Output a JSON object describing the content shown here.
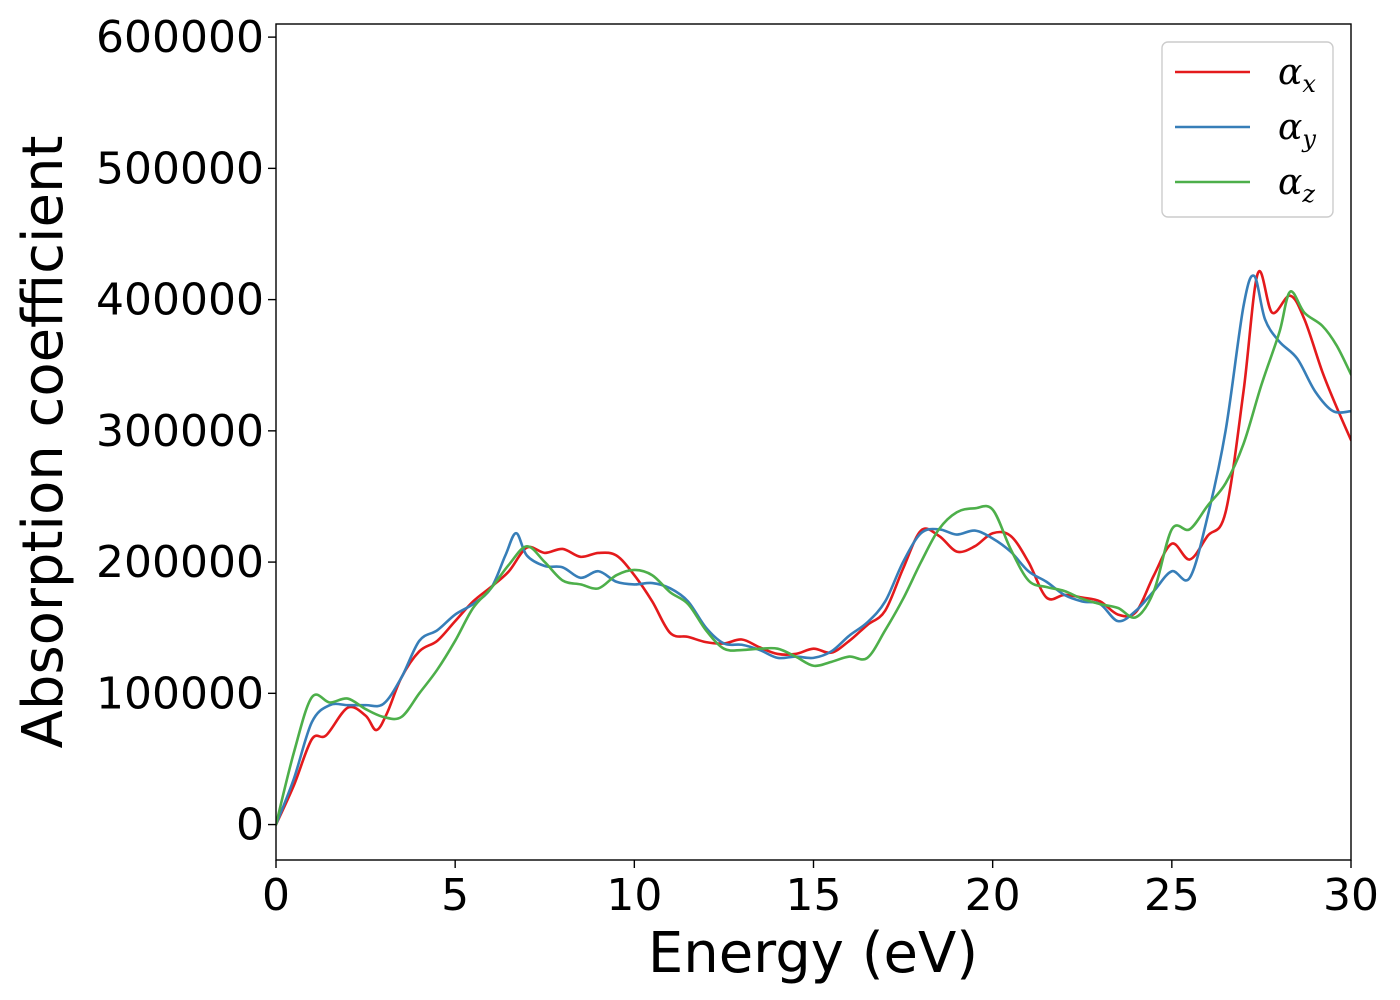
{
  "chart_data": {
    "type": "line",
    "xlabel": "Energy (eV)",
    "ylabel": "Absorption coefficient",
    "xlim": [
      0,
      30
    ],
    "ylim": [
      -27000,
      610000
    ],
    "xticks": [
      0,
      5,
      10,
      15,
      20,
      25,
      30
    ],
    "yticks": [
      0,
      100000,
      200000,
      300000,
      400000,
      500000,
      600000
    ],
    "grid": false,
    "legend_position": "top-right",
    "series": [
      {
        "name": "α",
        "subscript": "x",
        "color": "#e41a1c",
        "x": [
          0,
          0.5,
          1,
          1.4,
          2,
          2.5,
          2.8,
          3.1,
          3.5,
          4,
          4.5,
          5,
          5.5,
          6,
          6.5,
          7,
          7.5,
          8,
          8.5,
          9,
          9.5,
          10,
          10.5,
          11,
          11.5,
          12,
          12.5,
          13,
          13.5,
          14,
          14.5,
          15,
          15.5,
          16,
          16.5,
          17,
          17.5,
          18,
          18.5,
          19,
          19.5,
          20,
          20.5,
          21,
          21.5,
          22,
          22.5,
          23,
          23.5,
          24,
          24.5,
          25,
          25.5,
          26,
          26.5,
          27,
          27.4,
          27.8,
          28.3,
          28.7,
          29.2,
          29.6,
          30
        ],
        "y": [
          0,
          30000,
          65000,
          68000,
          89000,
          83000,
          72000,
          85000,
          112000,
          132000,
          140000,
          155000,
          170000,
          181000,
          193000,
          211000,
          207000,
          210000,
          204000,
          207000,
          205000,
          190000,
          170000,
          146000,
          143000,
          139000,
          138000,
          141000,
          135000,
          130000,
          130000,
          134000,
          131000,
          140000,
          152000,
          163000,
          195000,
          224000,
          220000,
          208000,
          212000,
          222000,
          220000,
          200000,
          173000,
          175000,
          173000,
          170000,
          160000,
          162000,
          190000,
          214000,
          202000,
          220000,
          238000,
          330000,
          420000,
          390000,
          403000,
          385000,
          345000,
          318000,
          293000
        ]
      },
      {
        "name": "α",
        "subscript": "y",
        "color": "#377eb8",
        "x": [
          0,
          0.5,
          1,
          1.5,
          2,
          2.5,
          3,
          3.5,
          4,
          4.5,
          5,
          5.5,
          6,
          6.4,
          6.7,
          7,
          7.5,
          8,
          8.5,
          9,
          9.5,
          10,
          10.5,
          11,
          11.5,
          12,
          12.5,
          13,
          13.5,
          14,
          14.5,
          15,
          15.5,
          16,
          16.5,
          17,
          17.5,
          18,
          18.5,
          19,
          19.5,
          20,
          20.5,
          21,
          21.5,
          22,
          22.5,
          23,
          23.5,
          24,
          24.5,
          25,
          25.5,
          26,
          26.5,
          27,
          27.3,
          27.6,
          28,
          28.5,
          29,
          29.5,
          30
        ],
        "y": [
          0,
          35000,
          78000,
          91000,
          91000,
          91000,
          92000,
          112000,
          140000,
          148000,
          160000,
          168000,
          180000,
          205000,
          222000,
          205000,
          197000,
          196000,
          188000,
          193000,
          185000,
          183000,
          184000,
          180000,
          170000,
          150000,
          138000,
          137000,
          133000,
          127000,
          128000,
          127000,
          132000,
          144000,
          154000,
          170000,
          200000,
          222000,
          225000,
          221000,
          224000,
          218000,
          208000,
          193000,
          185000,
          175000,
          170000,
          168000,
          155000,
          163000,
          178000,
          193000,
          188000,
          235000,
          300000,
          395000,
          418000,
          385000,
          368000,
          355000,
          330000,
          315000,
          315000
        ]
      },
      {
        "name": "α",
        "subscript": "z",
        "color": "#4daf4a",
        "x": [
          0,
          0.5,
          1,
          1.5,
          2,
          2.5,
          3,
          3.5,
          4,
          4.5,
          5,
          5.5,
          6,
          6.5,
          7,
          7.5,
          8,
          8.5,
          9,
          9.5,
          10,
          10.5,
          11,
          11.5,
          12,
          12.5,
          13,
          13.5,
          14,
          14.5,
          15,
          15.5,
          16,
          16.5,
          17,
          17.5,
          18,
          18.5,
          19,
          19.5,
          20,
          20.5,
          21,
          21.5,
          22,
          22.5,
          23,
          23.5,
          24,
          24.5,
          25,
          25.5,
          26,
          26.5,
          27,
          27.5,
          28,
          28.3,
          28.7,
          29.2,
          29.6,
          30
        ],
        "y": [
          0,
          55000,
          97000,
          93000,
          96000,
          88000,
          82000,
          82000,
          100000,
          118000,
          140000,
          165000,
          180000,
          198000,
          212000,
          200000,
          186000,
          183000,
          180000,
          190000,
          194000,
          190000,
          177000,
          168000,
          148000,
          134000,
          133000,
          134000,
          134000,
          128000,
          121000,
          124000,
          128000,
          127000,
          148000,
          172000,
          200000,
          225000,
          238000,
          241000,
          240000,
          210000,
          186000,
          181000,
          178000,
          172000,
          168000,
          165000,
          158000,
          178000,
          225000,
          225000,
          243000,
          260000,
          290000,
          335000,
          375000,
          406000,
          390000,
          380000,
          365000,
          343000
        ]
      }
    ]
  }
}
